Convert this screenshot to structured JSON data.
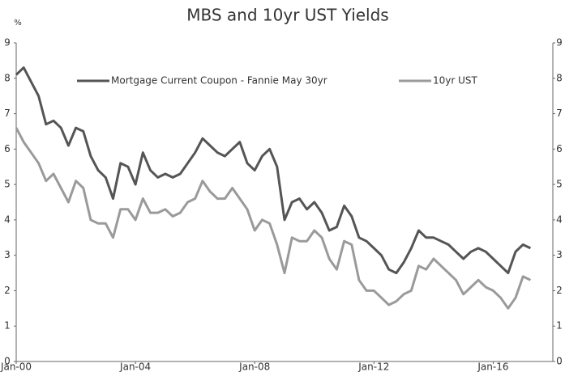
{
  "chart_data": {
    "type": "line",
    "title": "MBS and 10yr UST Yields",
    "y_label": "%",
    "x": [
      "2000-01",
      "2000-04",
      "2000-07",
      "2000-10",
      "2001-01",
      "2001-04",
      "2001-07",
      "2001-10",
      "2002-01",
      "2002-04",
      "2002-07",
      "2002-10",
      "2003-01",
      "2003-04",
      "2003-07",
      "2003-10",
      "2004-01",
      "2004-04",
      "2004-07",
      "2004-10",
      "2005-01",
      "2005-04",
      "2005-07",
      "2005-10",
      "2006-01",
      "2006-04",
      "2006-07",
      "2006-10",
      "2007-01",
      "2007-04",
      "2007-07",
      "2007-10",
      "2008-01",
      "2008-04",
      "2008-07",
      "2008-10",
      "2009-01",
      "2009-04",
      "2009-07",
      "2009-10",
      "2010-01",
      "2010-04",
      "2010-07",
      "2010-10",
      "2011-01",
      "2011-04",
      "2011-07",
      "2011-10",
      "2012-01",
      "2012-04",
      "2012-07",
      "2012-10",
      "2013-01",
      "2013-04",
      "2013-07",
      "2013-10",
      "2014-01",
      "2014-04",
      "2014-07",
      "2014-10",
      "2015-01",
      "2015-04",
      "2015-07",
      "2015-10",
      "2016-01",
      "2016-04",
      "2016-07",
      "2016-10",
      "2017-01",
      "2017-04"
    ],
    "series": [
      {
        "name": "Mortgage Current Coupon - Fannie May 30yr",
        "color": "#555555",
        "values": [
          8.1,
          8.3,
          7.9,
          7.5,
          6.7,
          6.8,
          6.6,
          6.1,
          6.6,
          6.5,
          5.8,
          5.4,
          5.2,
          4.6,
          5.6,
          5.5,
          5.0,
          5.9,
          5.4,
          5.2,
          5.3,
          5.2,
          5.3,
          5.6,
          5.9,
          6.3,
          6.1,
          5.9,
          5.8,
          6.0,
          6.2,
          5.6,
          5.4,
          5.8,
          6.0,
          5.5,
          4.0,
          4.5,
          4.6,
          4.3,
          4.5,
          4.2,
          3.7,
          3.8,
          4.4,
          4.1,
          3.5,
          3.4,
          3.2,
          3.0,
          2.6,
          2.5,
          2.8,
          3.2,
          3.7,
          3.5,
          3.5,
          3.4,
          3.3,
          3.1,
          2.9,
          3.1,
          3.2,
          3.1,
          2.9,
          2.7,
          2.5,
          3.1,
          3.3,
          3.2
        ]
      },
      {
        "name": "10yr UST",
        "color": "#9a9a9a",
        "values": [
          6.6,
          6.2,
          5.9,
          5.6,
          5.1,
          5.3,
          4.9,
          4.5,
          5.1,
          4.9,
          4.0,
          3.9,
          3.9,
          3.5,
          4.3,
          4.3,
          4.0,
          4.6,
          4.2,
          4.2,
          4.3,
          4.1,
          4.2,
          4.5,
          4.6,
          5.1,
          4.8,
          4.6,
          4.6,
          4.9,
          4.6,
          4.3,
          3.7,
          4.0,
          3.9,
          3.3,
          2.5,
          3.5,
          3.4,
          3.4,
          3.7,
          3.5,
          2.9,
          2.6,
          3.4,
          3.3,
          2.3,
          2.0,
          2.0,
          1.8,
          1.6,
          1.7,
          1.9,
          2.0,
          2.7,
          2.6,
          2.9,
          2.7,
          2.5,
          2.3,
          1.9,
          2.1,
          2.3,
          2.1,
          2.0,
          1.8,
          1.5,
          1.8,
          2.4,
          2.3
        ]
      }
    ],
    "xlim": [
      "2000-01",
      "2018-01"
    ],
    "xticks": [
      {
        "value": "2000-01",
        "label": "Jan-00"
      },
      {
        "value": "2004-01",
        "label": "Jan-04"
      },
      {
        "value": "2008-01",
        "label": "Jan-08"
      },
      {
        "value": "2012-01",
        "label": "Jan-12"
      },
      {
        "value": "2016-01",
        "label": "Jan-16"
      }
    ],
    "ylim": [
      0,
      9
    ],
    "yticks": [
      0,
      1,
      2,
      3,
      4,
      5,
      6,
      7,
      8,
      9
    ],
    "y2lim": [
      0,
      9
    ],
    "y2ticks": [
      0,
      1,
      2,
      3,
      4,
      5,
      6,
      7,
      8,
      9
    ],
    "grid": false,
    "legend": "top"
  }
}
